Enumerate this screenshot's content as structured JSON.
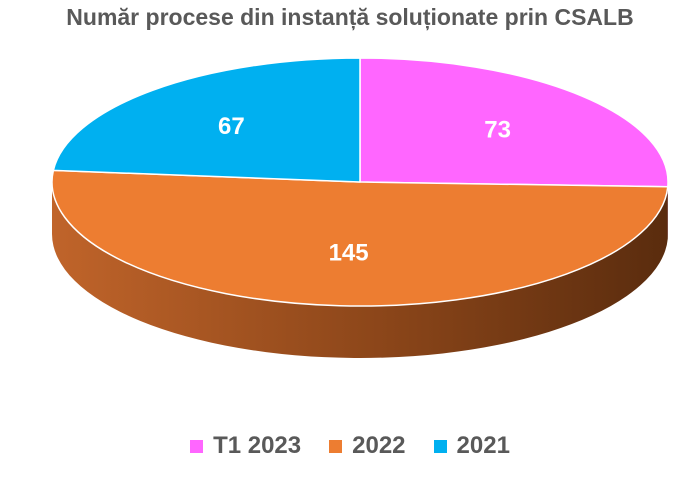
{
  "chart_data": {
    "type": "pie",
    "title": "Număr procese din instanță soluționate prin CSALB",
    "categories": [
      "T1 2023",
      "2022",
      "2021"
    ],
    "values": [
      73,
      145,
      67
    ],
    "colors": [
      "#ff66ff",
      "#ed7d31",
      "#00b0f0"
    ],
    "side_colors": [
      "#b54eb5",
      "#b85f23",
      "#0088bb"
    ],
    "label_color": "#ffffff",
    "legend_position": "bottom",
    "style": "3d-pie"
  }
}
